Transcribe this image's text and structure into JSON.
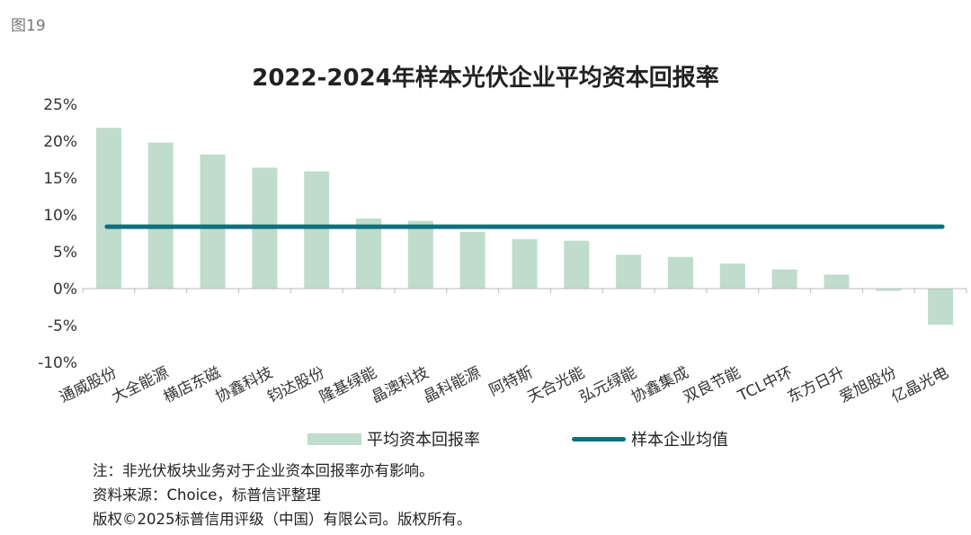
{
  "figure_label": "图19",
  "chart_data": {
    "type": "bar",
    "title": "2022-2024年样本光伏企业平均资本回报率",
    "categories": [
      "通威股份",
      "大全能源",
      "横店东磁",
      "协鑫科技",
      "钧达股份",
      "隆基绿能",
      "晶澳科技",
      "晶科能源",
      "阿特斯",
      "天合光能",
      "弘元绿能",
      "协鑫集成",
      "双良节能",
      "TCL中环",
      "东方日升",
      "爱旭股份",
      "亿晶光电"
    ],
    "series": [
      {
        "name": "平均资本回报率",
        "kind": "bar",
        "color": "#bfdccc",
        "values": [
          21.8,
          19.8,
          18.2,
          16.4,
          15.9,
          9.5,
          9.2,
          7.7,
          6.7,
          6.5,
          4.6,
          4.3,
          3.4,
          2.6,
          1.9,
          -0.3,
          -4.9
        ]
      },
      {
        "name": "样本企业均值",
        "kind": "line",
        "color": "#0e717c",
        "value": 8.4
      }
    ],
    "ylim": [
      -10,
      25
    ],
    "yticks": [
      -10,
      -5,
      0,
      5,
      10,
      15,
      20,
      25
    ],
    "ytick_labels": [
      "-10%",
      "-5%",
      "0%",
      "5%",
      "10%",
      "15%",
      "20%",
      "25%"
    ],
    "xlabel": "",
    "ylabel": "",
    "legend_position": "bottom"
  },
  "notes": [
    "注：非光伏板块业务对于企业资本回报率亦有影响。",
    "资料来源：Choice，标普信评整理",
    "版权©2025标普信用评级（中国）有限公司。版权所有。"
  ]
}
